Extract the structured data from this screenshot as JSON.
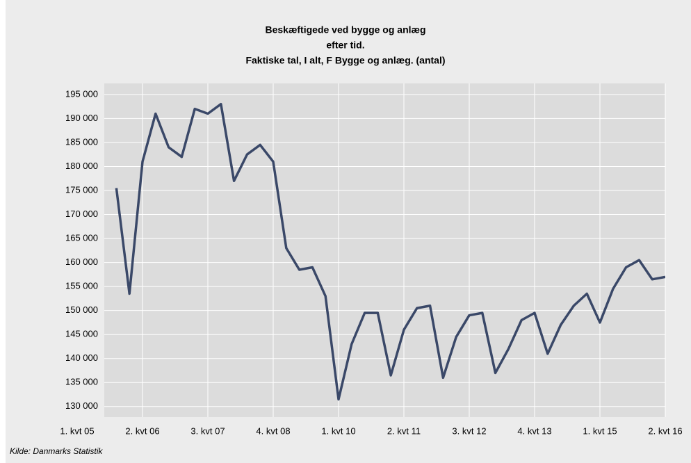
{
  "chart_data": {
    "type": "line",
    "title_lines": [
      "Beskæftigede ved bygge og anlæg",
      "efter tid.",
      "Faktiske tal, I alt, F Bygge og anlæg. (antal)"
    ],
    "source": "Kilde: Danmarks Statistik",
    "categories": [
      "1. kvt 05",
      null,
      null,
      null,
      null,
      "2. kvt 06",
      null,
      null,
      null,
      null,
      "3. kvt 07",
      null,
      null,
      null,
      null,
      "4. kvt 08",
      null,
      null,
      null,
      null,
      "1. kvt 10",
      null,
      null,
      null,
      null,
      "2. kvt 11",
      null,
      null,
      null,
      null,
      "3. kvt 12",
      null,
      null,
      null,
      null,
      "4. kvt 13",
      null,
      null,
      null,
      null,
      "1. kvt 15",
      null,
      null,
      null,
      null,
      "2. kvt 16"
    ],
    "series": [
      {
        "name": "I alt",
        "color": "#3a4868",
        "values": [
          null,
          null,
          null,
          175500,
          153500,
          181000,
          191000,
          184000,
          182000,
          192000,
          191000,
          193000,
          177000,
          182500,
          184500,
          181000,
          163000,
          158500,
          159000,
          153000,
          131500,
          143000,
          149500,
          149500,
          136500,
          146000,
          150500,
          151000,
          136000,
          144500,
          149000,
          149500,
          137000,
          142000,
          148000,
          149500,
          141000,
          147000,
          151000,
          153500,
          147500,
          154500,
          159000,
          160500,
          156500,
          157000
        ]
      }
    ],
    "ylim": [
      127800,
      197300
    ],
    "yticks": [
      {
        "value": 130000,
        "label": "130 000"
      },
      {
        "value": 135000,
        "label": "135 000"
      },
      {
        "value": 140000,
        "label": "140 000"
      },
      {
        "value": 145000,
        "label": "145 000"
      },
      {
        "value": 150000,
        "label": "150 000"
      },
      {
        "value": 155000,
        "label": "155 000"
      },
      {
        "value": 160000,
        "label": "160 000"
      },
      {
        "value": 165000,
        "label": "165 000"
      },
      {
        "value": 170000,
        "label": "170 000"
      },
      {
        "value": 175000,
        "label": "175 000"
      },
      {
        "value": 180000,
        "label": "180 000"
      },
      {
        "value": 185000,
        "label": "185 000"
      },
      {
        "value": 190000,
        "label": "190 000"
      },
      {
        "value": 195000,
        "label": "195 000"
      }
    ],
    "grid": true
  }
}
